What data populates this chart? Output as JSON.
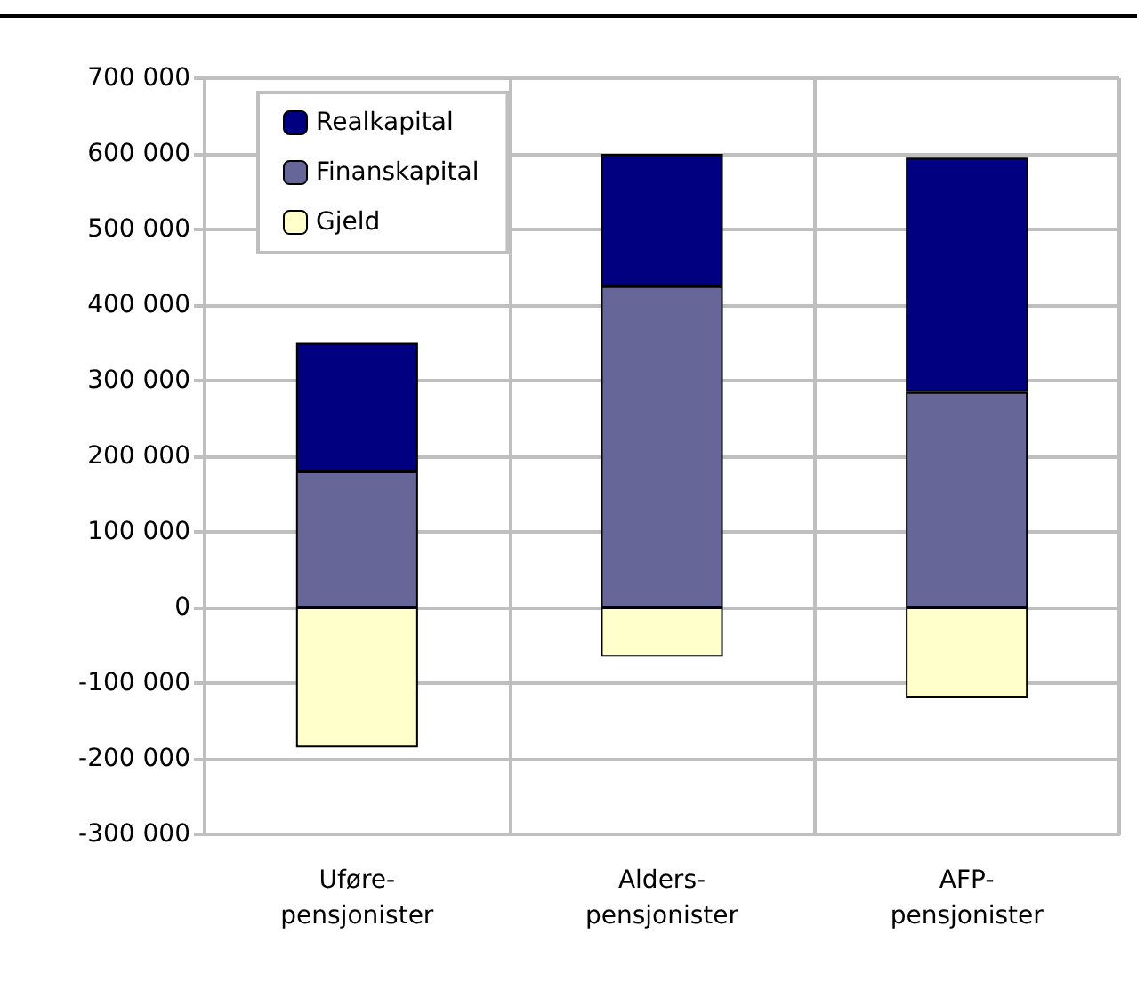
{
  "chart_data": {
    "type": "bar",
    "stacked": true,
    "categories": [
      "Uføre-\npensjonister",
      "Alders-\npensjonister",
      "AFP-\npensjonister"
    ],
    "series": [
      {
        "name": "Finanskapital",
        "color": "#666699",
        "values": [
          180000,
          425000,
          285000
        ]
      },
      {
        "name": "Realkapital",
        "color": "#000080",
        "values": [
          170000,
          175000,
          310000
        ]
      },
      {
        "name": "Gjeld",
        "color": "#ffffcc",
        "values": [
          -185000,
          -65000,
          -120000
        ]
      }
    ],
    "ylim": [
      -300000,
      700000
    ],
    "yticks": [
      {
        "value": -300000,
        "label": "-300 000"
      },
      {
        "value": -200000,
        "label": "-200 000"
      },
      {
        "value": -100000,
        "label": "-100 000"
      },
      0,
      {
        "value": 100000,
        "label": "100 000"
      },
      {
        "value": 200000,
        "label": "200 000"
      },
      {
        "value": 300000,
        "label": "300 000"
      },
      {
        "value": 400000,
        "label": "400 000"
      },
      {
        "value": 500000,
        "label": "500 000"
      },
      {
        "value": 600000,
        "label": "600 000"
      },
      {
        "value": 700000,
        "label": "700 000"
      }
    ],
    "grid": true,
    "legend": "top left"
  }
}
